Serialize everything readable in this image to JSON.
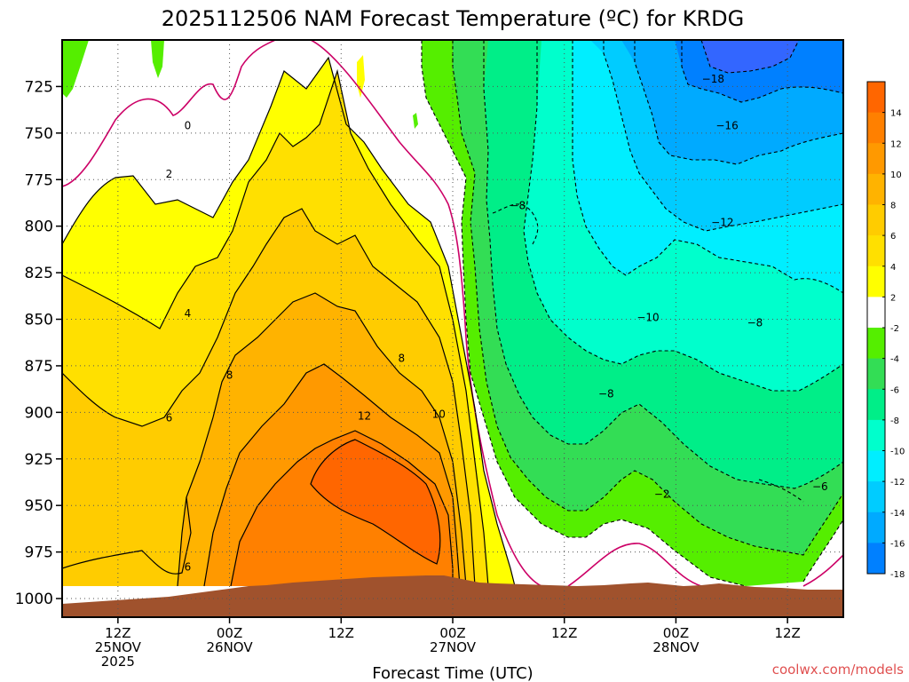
{
  "chart_data": {
    "type": "heatmap",
    "title": "2025112506 NAM Forecast Temperature (ºC) for KRDG",
    "xlabel": "Forecast Time (UTC)",
    "ylabel": "",
    "y_ticks": [
      "725",
      "750",
      "775",
      "800",
      "825",
      "850",
      "875",
      "900",
      "925",
      "950",
      "975",
      "1000"
    ],
    "y_values": [
      725,
      750,
      775,
      800,
      825,
      850,
      875,
      900,
      925,
      950,
      975,
      1000
    ],
    "ylim": [
      700,
      1010
    ],
    "x_ticks": [
      {
        "line1": "12Z",
        "line2": "25NOV",
        "line3": "2025",
        "hour": 6
      },
      {
        "line1": "00Z",
        "line2": "26NOV",
        "line3": "",
        "hour": 18
      },
      {
        "line1": "12Z",
        "line2": "",
        "line3": "",
        "hour": 30
      },
      {
        "line1": "00Z",
        "line2": "27NOV",
        "line3": "",
        "hour": 42
      },
      {
        "line1": "12Z",
        "line2": "",
        "line3": "",
        "hour": 54
      },
      {
        "line1": "00Z",
        "line2": "28NOV",
        "line3": "",
        "hour": 66
      },
      {
        "line1": "12Z",
        "line2": "",
        "line3": "",
        "hour": 78
      }
    ],
    "xlim": [
      0,
      84
    ],
    "colorbar_labels": [
      "14",
      "12",
      "10",
      "8",
      "6",
      "4",
      "2",
      "-2",
      "-4",
      "-6",
      "-8",
      "-10",
      "-12",
      "-14",
      "-16",
      "-18"
    ],
    "colorbar_colors": [
      "#ff6600",
      "#ff8000",
      "#ff9900",
      "#ffb300",
      "#ffcc00",
      "#ffe000",
      "#ffff00",
      "#ffffff",
      "#55ee00",
      "#33dd55",
      "#00ee88",
      "#00ffcc",
      "#00eeff",
      "#00ccff",
      "#00aaff",
      "#0080ff"
    ],
    "contour_labels": [
      {
        "text": "0",
        "hour": 13.5,
        "p": 746
      },
      {
        "text": "2",
        "hour": 11.5,
        "p": 772
      },
      {
        "text": "4",
        "hour": 13.5,
        "p": 847
      },
      {
        "text": "6",
        "hour": 11.5,
        "p": 903
      },
      {
        "text": "8",
        "hour": 18,
        "p": 880
      },
      {
        "text": "8",
        "hour": 36.5,
        "p": 871
      },
      {
        "text": "12",
        "hour": 32.5,
        "p": 902
      },
      {
        "text": "10",
        "hour": 40.5,
        "p": 901
      },
      {
        "text": "6",
        "hour": 13.5,
        "p": 983
      },
      {
        "text": "−8",
        "hour": 49,
        "p": 789
      },
      {
        "text": "−18",
        "hour": 70,
        "p": 721
      },
      {
        "text": "−16",
        "hour": 71.5,
        "p": 746
      },
      {
        "text": "−12",
        "hour": 71,
        "p": 798
      },
      {
        "text": "−10",
        "hour": 63,
        "p": 849
      },
      {
        "text": "−8",
        "hour": 74.5,
        "p": 852
      },
      {
        "text": "−8",
        "hour": 58.5,
        "p": 890
      },
      {
        "text": "−6",
        "hour": 81.5,
        "p": 940
      },
      {
        "text": "−2",
        "hour": 64.5,
        "p": 944
      }
    ]
  },
  "footer": {
    "watermark": "coolwx.com/models"
  }
}
